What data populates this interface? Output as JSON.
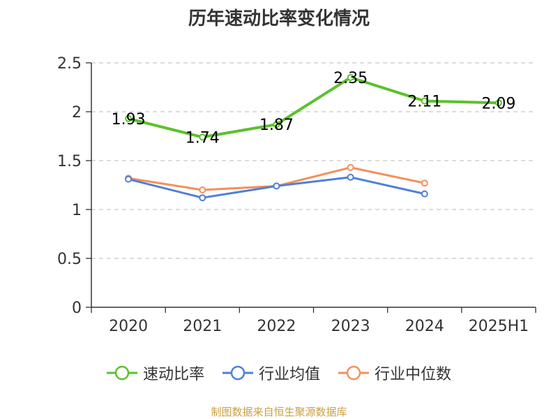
{
  "title": "历年速动比率变化情况",
  "source": "制图数据来自恒生聚源数据库",
  "chart_data": {
    "type": "line",
    "categories": [
      "2020",
      "2021",
      "2022",
      "2023",
      "2024",
      "2025H1"
    ],
    "ylim": [
      0,
      2.5
    ],
    "yticks": [
      "0",
      "0.5",
      "1",
      "1.5",
      "2",
      "2.5"
    ],
    "grid": true,
    "legend_position": "bottom",
    "series": [
      {
        "name": "速动比率",
        "color": "#5cc12c",
        "values": [
          1.93,
          1.74,
          1.87,
          2.35,
          2.11,
          2.09
        ],
        "labels": [
          "1.93",
          "1.74",
          "1.87",
          "2.35",
          "2.11",
          "2.09"
        ]
      },
      {
        "name": "行业均值",
        "color": "#4f7fda",
        "values": [
          1.31,
          1.12,
          1.24,
          1.33,
          1.16,
          null
        ]
      },
      {
        "name": "行业中位数",
        "color": "#f58f5a",
        "values": [
          1.32,
          1.2,
          1.24,
          1.43,
          1.27,
          null
        ]
      }
    ]
  }
}
